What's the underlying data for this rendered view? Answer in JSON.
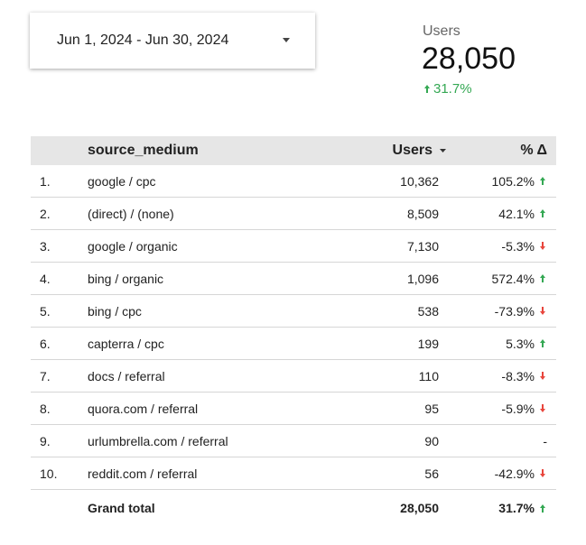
{
  "date_range": {
    "label": "Jun 1, 2024 - Jun 30, 2024"
  },
  "scorecard": {
    "label": "Users",
    "value": "28,050",
    "change": "31.7%",
    "trend": "up"
  },
  "table": {
    "headers": [
      "source_medium",
      "Users",
      "% Δ"
    ],
    "rows": [
      {
        "rank": "1.",
        "source_medium": "google / cpc",
        "users": "10,362",
        "change": "105.2%",
        "trend": "up"
      },
      {
        "rank": "2.",
        "source_medium": "(direct) / (none)",
        "users": "8,509",
        "change": "42.1%",
        "trend": "up"
      },
      {
        "rank": "3.",
        "source_medium": "google / organic",
        "users": "7,130",
        "change": "-5.3%",
        "trend": "down"
      },
      {
        "rank": "4.",
        "source_medium": "bing / organic",
        "users": "1,096",
        "change": "572.4%",
        "trend": "up"
      },
      {
        "rank": "5.",
        "source_medium": "bing / cpc",
        "users": "538",
        "change": "-73.9%",
        "trend": "down"
      },
      {
        "rank": "6.",
        "source_medium": "capterra / cpc",
        "users": "199",
        "change": "5.3%",
        "trend": "up"
      },
      {
        "rank": "7.",
        "source_medium": "docs / referral",
        "users": "110",
        "change": "-8.3%",
        "trend": "down"
      },
      {
        "rank": "8.",
        "source_medium": "quora.com / referral",
        "users": "95",
        "change": "-5.9%",
        "trend": "down"
      },
      {
        "rank": "9.",
        "source_medium": "urlumbrella.com / referral",
        "users": "90",
        "change": "-",
        "trend": null
      },
      {
        "rank": "10.",
        "source_medium": "reddit.com / referral",
        "users": "56",
        "change": "-42.9%",
        "trend": "down"
      }
    ],
    "total": {
      "label": "Grand total",
      "users": "28,050",
      "change": "31.7%",
      "trend": "up"
    }
  }
}
